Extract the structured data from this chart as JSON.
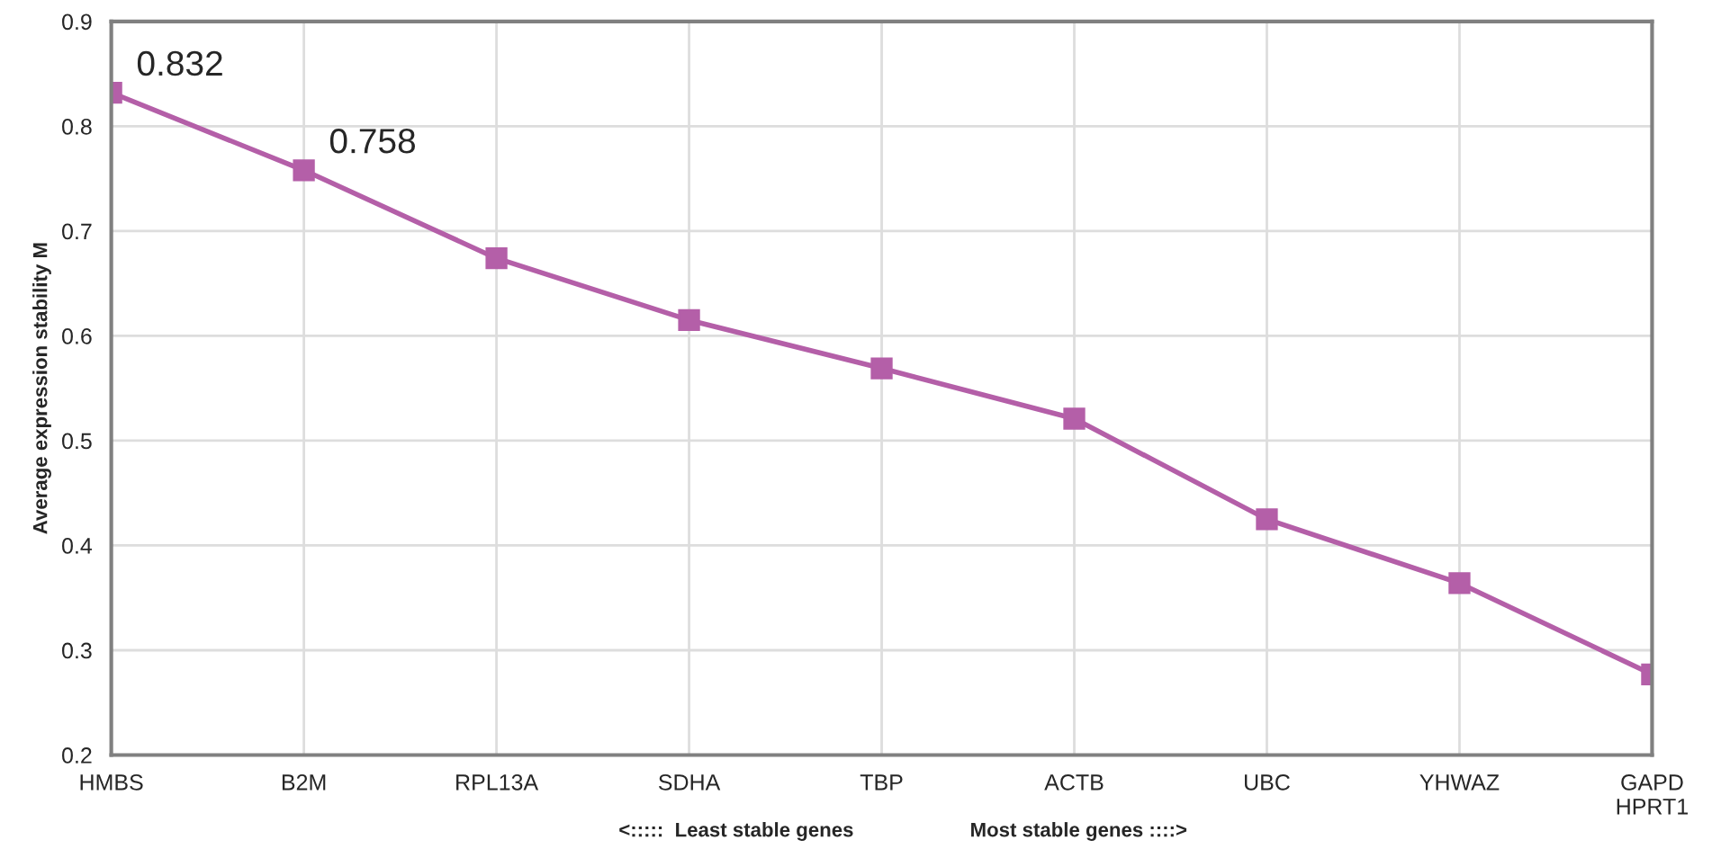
{
  "chart_data": {
    "type": "line",
    "ylabel": "Average expression stability M",
    "categories": [
      "HMBS",
      "B2M",
      "RPL13A",
      "SDHA",
      "TBP",
      "ACTB",
      "UBC",
      "YHWAZ",
      "GAPD\nHPRT1"
    ],
    "series": [
      {
        "color": "#b45fa8",
        "values": [
          0.832,
          0.758,
          0.674,
          0.615,
          0.569,
          0.521,
          0.425,
          0.364,
          0.277
        ],
        "value_labels": [
          "0.832",
          "0.758",
          null,
          null,
          null,
          null,
          null,
          null,
          null
        ]
      }
    ],
    "ylim": [
      0.2,
      0.9
    ],
    "yticks": [
      0.2,
      0.3,
      0.4,
      0.5,
      0.6,
      0.7,
      0.8,
      0.9
    ],
    "annotations": [
      "<:::::  Least stable genes",
      "Most stable genes ::::>"
    ],
    "grid": true,
    "marker": "square",
    "line_style": "solid"
  }
}
